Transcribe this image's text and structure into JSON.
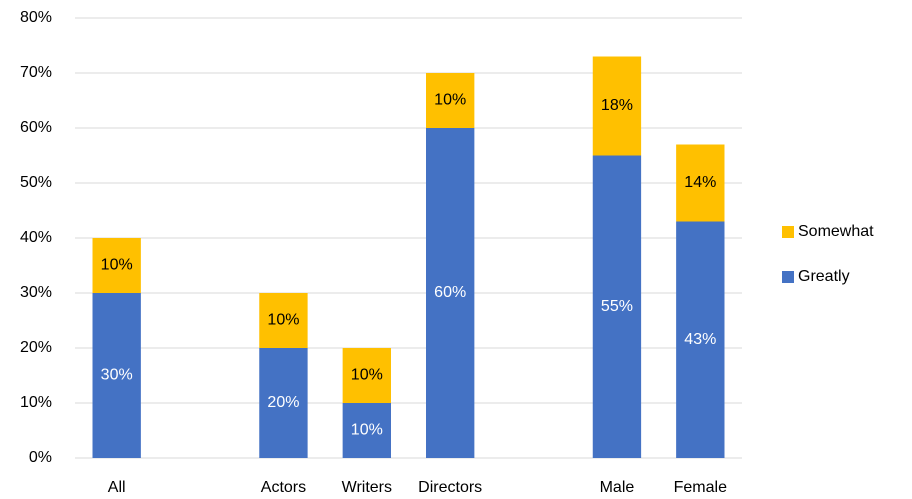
{
  "chart_data": {
    "type": "stacked_bar",
    "categories": [
      "All",
      null,
      "Actors",
      "Writers",
      "Directors",
      null,
      "Male",
      "Female"
    ],
    "series": [
      {
        "name": "Greatly",
        "color": "#4472c4",
        "values": [
          30,
          null,
          20,
          10,
          60,
          null,
          55,
          43
        ],
        "value_labels": [
          "30%",
          null,
          "20%",
          "10%",
          "60%",
          null,
          "55%",
          "43%"
        ]
      },
      {
        "name": "Somewhat",
        "color": "#ffc000",
        "values": [
          10,
          null,
          10,
          10,
          10,
          null,
          18,
          14
        ],
        "value_labels": [
          "10%",
          null,
          "10%",
          "10%",
          "10%",
          null,
          "18%",
          "14%"
        ]
      }
    ],
    "ylim": [
      0,
      80
    ],
    "yticks": [
      {
        "value": 0,
        "label": "0%"
      },
      {
        "value": 10,
        "label": "10%"
      },
      {
        "value": 20,
        "label": "20%"
      },
      {
        "value": 30,
        "label": "30%"
      },
      {
        "value": 40,
        "label": "40%"
      },
      {
        "value": 50,
        "label": "50%"
      },
      {
        "value": 60,
        "label": "60%"
      },
      {
        "value": 70,
        "label": "70%"
      },
      {
        "value": 80,
        "label": "80%"
      }
    ],
    "grid": true,
    "legend": "right"
  }
}
